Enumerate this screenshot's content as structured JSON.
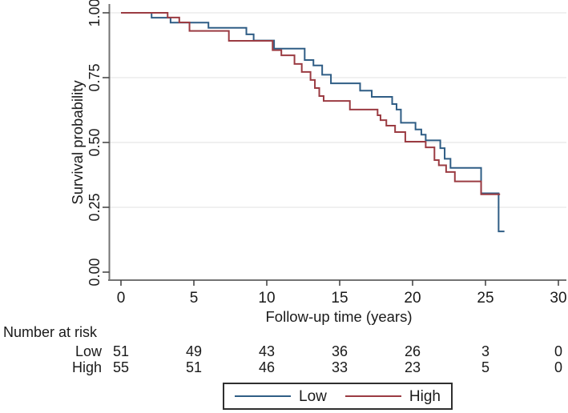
{
  "figure": {
    "background": "#ffffff"
  },
  "colors": {
    "low_line": "#2f5d85",
    "high_line": "#9b3b42",
    "axis_line": "#737373",
    "tick_mark": "#3d3d3d",
    "grid_line": "#ebebeb",
    "text": "#1a1a1a",
    "legend_border": "#2f2f2f"
  },
  "chart_data": {
    "type": "line",
    "subtype": "kaplan-meier-step",
    "title": "",
    "xlabel": "Follow-up time (years)",
    "ylabel": "Survival probability",
    "xlim": [
      0,
      30
    ],
    "ylim": [
      0,
      1
    ],
    "xticks": [
      0,
      5,
      10,
      15,
      20,
      25,
      30
    ],
    "xtick_labels": [
      "0",
      "5",
      "10",
      "15",
      "20",
      "25",
      "30"
    ],
    "ytick_values": [
      0,
      0.25,
      0.5,
      0.75,
      1
    ],
    "ytick_labels": [
      "0.00",
      "0.25",
      "0.50",
      "0.75",
      "1.00"
    ],
    "grid": "horizontal",
    "legend_position": "bottom",
    "series": [
      {
        "name": "Low",
        "color": "#2f5d85",
        "end_time": 26.3,
        "steps": [
          [
            0,
            1.0
          ],
          [
            2.1,
            0.981
          ],
          [
            3.4,
            0.962
          ],
          [
            6.0,
            0.942
          ],
          [
            8.6,
            0.917
          ],
          [
            9.1,
            0.893
          ],
          [
            10.5,
            0.862
          ],
          [
            12.6,
            0.818
          ],
          [
            13.2,
            0.797
          ],
          [
            13.8,
            0.761
          ],
          [
            14.4,
            0.728
          ],
          [
            16.4,
            0.7
          ],
          [
            17.2,
            0.676
          ],
          [
            18.6,
            0.648
          ],
          [
            18.9,
            0.627
          ],
          [
            19.2,
            0.576
          ],
          [
            20.2,
            0.55
          ],
          [
            20.6,
            0.53
          ],
          [
            20.9,
            0.508
          ],
          [
            21.9,
            0.478
          ],
          [
            22.2,
            0.437
          ],
          [
            22.6,
            0.402
          ],
          [
            24.7,
            0.304
          ],
          [
            25.9,
            0.157
          ]
        ]
      },
      {
        "name": "High",
        "color": "#9b3b42",
        "end_time": 26.0,
        "steps": [
          [
            0,
            1.0
          ],
          [
            3.2,
            0.982
          ],
          [
            4.0,
            0.963
          ],
          [
            4.7,
            0.93
          ],
          [
            7.4,
            0.892
          ],
          [
            10.4,
            0.856
          ],
          [
            11.0,
            0.836
          ],
          [
            11.9,
            0.803
          ],
          [
            12.4,
            0.772
          ],
          [
            13.0,
            0.741
          ],
          [
            13.3,
            0.71
          ],
          [
            13.6,
            0.679
          ],
          [
            13.9,
            0.66
          ],
          [
            15.7,
            0.627
          ],
          [
            17.6,
            0.605
          ],
          [
            17.8,
            0.586
          ],
          [
            18.2,
            0.565
          ],
          [
            18.8,
            0.54
          ],
          [
            19.5,
            0.503
          ],
          [
            20.9,
            0.481
          ],
          [
            21.5,
            0.432
          ],
          [
            21.8,
            0.412
          ],
          [
            22.3,
            0.386
          ],
          [
            22.9,
            0.35
          ],
          [
            24.7,
            0.3
          ]
        ]
      }
    ]
  },
  "risk_table": {
    "title": "Number at risk",
    "times": [
      0,
      5,
      10,
      15,
      20,
      25,
      30
    ],
    "rows": [
      {
        "label": "Low",
        "values": [
          "51",
          "49",
          "43",
          "36",
          "26",
          "3",
          "0"
        ]
      },
      {
        "label": "High",
        "values": [
          "55",
          "51",
          "46",
          "33",
          "23",
          "5",
          "0"
        ]
      }
    ]
  },
  "legend": {
    "items": [
      {
        "label": "Low",
        "color": "#2f5d85"
      },
      {
        "label": "High",
        "color": "#9b3b42"
      }
    ]
  }
}
